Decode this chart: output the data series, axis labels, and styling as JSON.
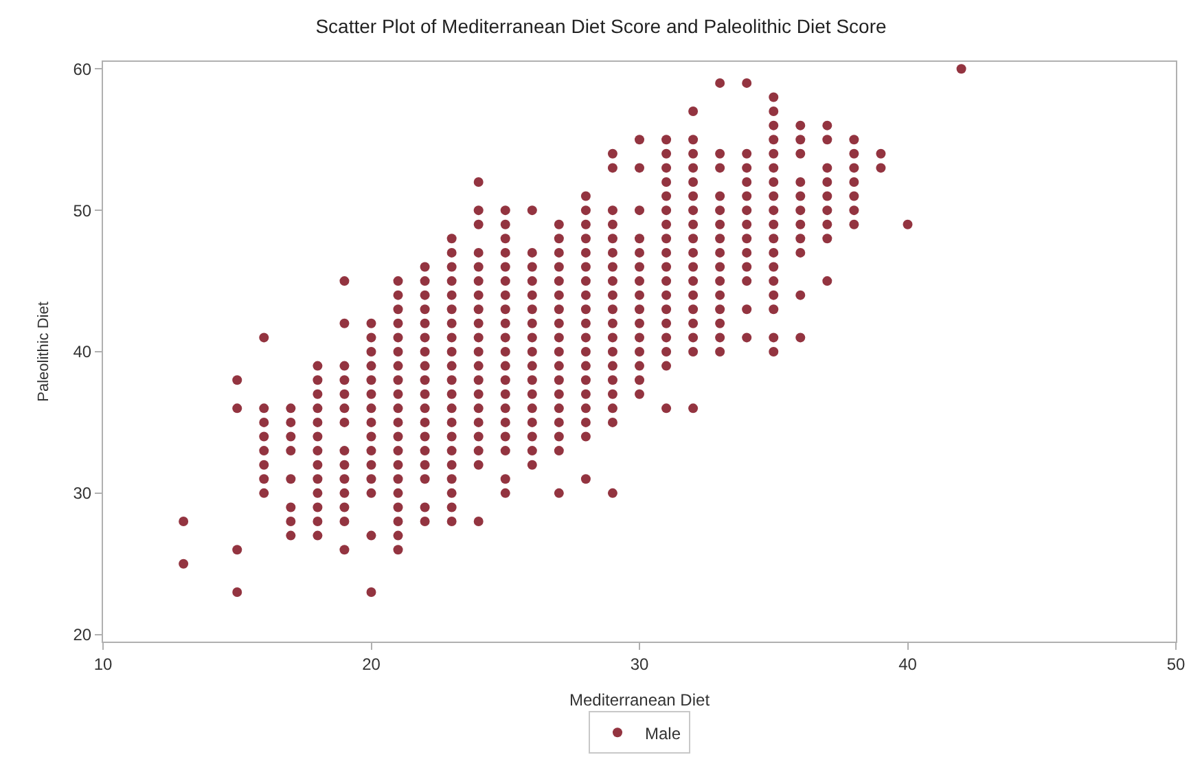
{
  "chart_data": {
    "type": "scatter",
    "title": "Scatter Plot of Mediterranean Diet Score and Paleolithic Diet Score",
    "xlabel": "Mediterranean Diet",
    "ylabel": "Paleolithic Diet",
    "xlim": [
      10,
      50
    ],
    "xticks": [
      10,
      20,
      30,
      40,
      50
    ],
    "ylim": [
      19.5,
      60.5
    ],
    "yticks": [
      20,
      30,
      40,
      50,
      60
    ],
    "legend": "bottom",
    "marker": "circle",
    "series": [
      {
        "name": "Male",
        "color": "#933440",
        "x": [
          13,
          13,
          15,
          15,
          15,
          15,
          16,
          16,
          16,
          16,
          16,
          16,
          16,
          16,
          17,
          17,
          17,
          17,
          17,
          17,
          17,
          17,
          18,
          18,
          18,
          18,
          18,
          18,
          18,
          18,
          18,
          18,
          18,
          18,
          18,
          19,
          19,
          19,
          19,
          19,
          19,
          19,
          19,
          19,
          19,
          19,
          19,
          19,
          19,
          20,
          20,
          20,
          20,
          20,
          20,
          20,
          20,
          20,
          20,
          20,
          20,
          20,
          20,
          20,
          21,
          21,
          21,
          21,
          21,
          21,
          21,
          21,
          21,
          21,
          21,
          21,
          21,
          21,
          21,
          21,
          21,
          21,
          21,
          21,
          22,
          22,
          22,
          22,
          22,
          22,
          22,
          22,
          22,
          22,
          22,
          22,
          22,
          22,
          22,
          22,
          22,
          22,
          23,
          23,
          23,
          23,
          23,
          23,
          23,
          23,
          23,
          23,
          23,
          23,
          23,
          23,
          23,
          23,
          23,
          23,
          23,
          23,
          23,
          24,
          24,
          24,
          24,
          24,
          24,
          24,
          24,
          24,
          24,
          24,
          24,
          24,
          24,
          24,
          24,
          24,
          24,
          24,
          24,
          25,
          25,
          25,
          25,
          25,
          25,
          25,
          25,
          25,
          25,
          25,
          25,
          25,
          25,
          25,
          25,
          25,
          25,
          25,
          25,
          26,
          26,
          26,
          26,
          26,
          26,
          26,
          26,
          26,
          26,
          26,
          26,
          26,
          26,
          26,
          26,
          26,
          27,
          27,
          27,
          27,
          27,
          27,
          27,
          27,
          27,
          27,
          27,
          27,
          27,
          27,
          27,
          27,
          27,
          27,
          28,
          28,
          28,
          28,
          28,
          28,
          28,
          28,
          28,
          28,
          28,
          28,
          28,
          28,
          28,
          28,
          28,
          28,
          28,
          29,
          29,
          29,
          29,
          29,
          29,
          29,
          29,
          29,
          29,
          29,
          29,
          29,
          29,
          29,
          29,
          29,
          29,
          29,
          30,
          30,
          30,
          30,
          30,
          30,
          30,
          30,
          30,
          30,
          30,
          30,
          30,
          30,
          30,
          31,
          31,
          31,
          31,
          31,
          31,
          31,
          31,
          31,
          31,
          31,
          31,
          31,
          31,
          31,
          31,
          31,
          31,
          32,
          32,
          32,
          32,
          32,
          32,
          32,
          32,
          32,
          32,
          32,
          32,
          32,
          32,
          32,
          32,
          32,
          32,
          33,
          33,
          33,
          33,
          33,
          33,
          33,
          33,
          33,
          33,
          33,
          33,
          33,
          33,
          33,
          34,
          34,
          34,
          34,
          34,
          34,
          34,
          34,
          34,
          34,
          34,
          34,
          34,
          35,
          35,
          35,
          35,
          35,
          35,
          35,
          35,
          35,
          35,
          35,
          35,
          35,
          35,
          35,
          35,
          35,
          35,
          36,
          36,
          36,
          36,
          36,
          36,
          36,
          36,
          36,
          36,
          36,
          37,
          37,
          37,
          37,
          37,
          37,
          37,
          37,
          37,
          38,
          38,
          38,
          38,
          38,
          38,
          38,
          39,
          39,
          40,
          42
        ],
        "values": [
          28,
          25,
          38,
          36,
          26,
          23,
          41,
          36,
          35,
          34,
          33,
          32,
          31,
          30,
          36,
          35,
          34,
          33,
          31,
          29,
          28,
          27,
          39,
          38,
          37,
          36,
          35,
          34,
          33,
          32,
          31,
          30,
          29,
          28,
          27,
          45,
          42,
          39,
          38,
          37,
          36,
          35,
          33,
          32,
          31,
          30,
          29,
          28,
          26,
          42,
          41,
          40,
          39,
          38,
          37,
          36,
          35,
          34,
          33,
          32,
          31,
          30,
          27,
          23,
          45,
          44,
          43,
          42,
          41,
          40,
          39,
          38,
          37,
          36,
          35,
          34,
          33,
          32,
          31,
          30,
          29,
          28,
          27,
          26,
          46,
          45,
          44,
          43,
          42,
          41,
          40,
          39,
          38,
          37,
          36,
          35,
          34,
          33,
          32,
          31,
          29,
          28,
          48,
          47,
          46,
          45,
          44,
          43,
          42,
          41,
          40,
          39,
          38,
          37,
          36,
          35,
          34,
          33,
          32,
          31,
          30,
          29,
          28,
          52,
          50,
          49,
          47,
          46,
          45,
          44,
          43,
          42,
          41,
          40,
          39,
          38,
          37,
          36,
          35,
          34,
          33,
          32,
          28,
          50,
          49,
          48,
          47,
          46,
          45,
          44,
          43,
          42,
          41,
          40,
          39,
          38,
          37,
          36,
          35,
          34,
          33,
          31,
          30,
          50,
          47,
          46,
          45,
          44,
          43,
          42,
          41,
          40,
          39,
          38,
          37,
          36,
          35,
          34,
          33,
          32,
          49,
          48,
          47,
          46,
          45,
          44,
          43,
          42,
          41,
          40,
          39,
          38,
          37,
          36,
          35,
          34,
          33,
          30,
          51,
          50,
          49,
          48,
          47,
          46,
          45,
          44,
          43,
          42,
          41,
          40,
          39,
          38,
          37,
          36,
          35,
          34,
          31,
          54,
          53,
          50,
          49,
          48,
          47,
          46,
          45,
          44,
          43,
          42,
          41,
          40,
          39,
          38,
          37,
          36,
          35,
          30,
          55,
          53,
          50,
          48,
          47,
          46,
          45,
          44,
          43,
          42,
          41,
          40,
          39,
          38,
          37,
          55,
          54,
          53,
          52,
          51,
          50,
          49,
          48,
          47,
          46,
          45,
          44,
          43,
          42,
          41,
          40,
          39,
          36,
          57,
          55,
          54,
          53,
          52,
          51,
          50,
          49,
          48,
          47,
          46,
          45,
          44,
          43,
          42,
          41,
          40,
          36,
          59,
          54,
          53,
          51,
          50,
          49,
          48,
          47,
          46,
          45,
          44,
          43,
          42,
          41,
          40,
          59,
          54,
          53,
          52,
          51,
          50,
          49,
          48,
          47,
          46,
          45,
          43,
          41,
          58,
          57,
          56,
          55,
          54,
          53,
          52,
          51,
          50,
          49,
          48,
          47,
          46,
          45,
          44,
          43,
          41,
          40,
          56,
          55,
          54,
          52,
          51,
          50,
          49,
          48,
          47,
          44,
          41,
          56,
          55,
          53,
          52,
          51,
          50,
          49,
          48,
          45,
          55,
          54,
          53,
          52,
          51,
          50,
          49,
          54,
          53,
          49,
          60
        ]
      }
    ]
  }
}
